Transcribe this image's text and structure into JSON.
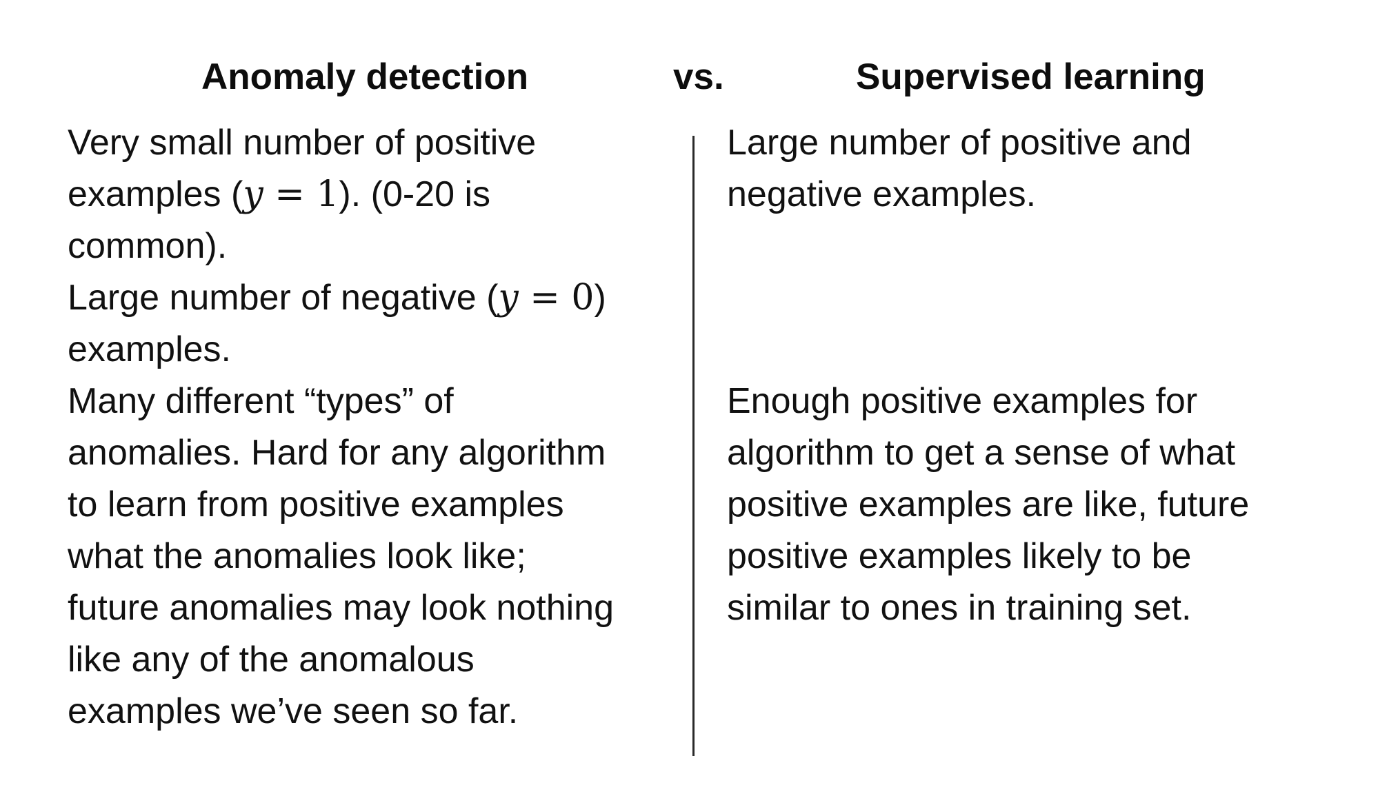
{
  "header": {
    "left_title": "Anomaly detection",
    "vs_label": "vs.",
    "right_title": "Supervised learning"
  },
  "left_column": {
    "lines": [
      "Very small number of positive",
      "examples (",
      "y",
      " = 1",
      "). (0-20 is",
      "common).",
      "Large number of negative (",
      "y",
      " = 0",
      ")",
      "examples.",
      "Many different “types” of",
      "anomalies. Hard for any algorithm",
      "to learn from positive examples",
      "what the anomalies look like;",
      "future anomalies may look nothing",
      "like any of the anomalous",
      "examples we’ve seen so far."
    ]
  },
  "right_column": {
    "lines": [
      "Large number of positive and",
      "negative examples.",
      "Enough positive examples for",
      "algorithm to get a sense of what",
      "positive examples are like,  future",
      "positive examples likely to be",
      "similar to ones in training set."
    ]
  }
}
